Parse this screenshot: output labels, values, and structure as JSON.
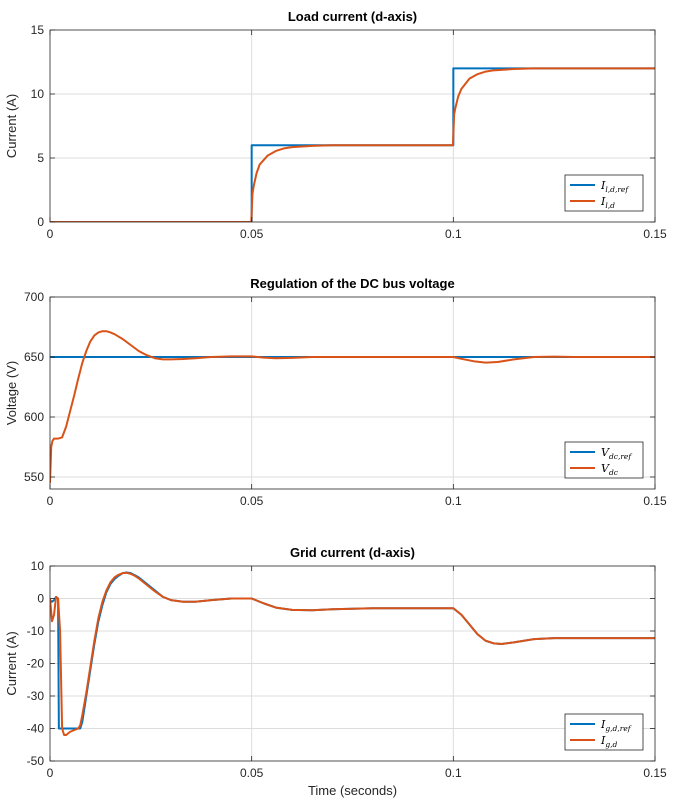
{
  "colors": {
    "reference": "#0072BD",
    "measured": "#D95319",
    "grid": "#dddddd",
    "axis": "#262626"
  },
  "chart_data": [
    {
      "type": "line",
      "title": "Load current (d-axis)",
      "xlabel": "",
      "ylabel": "Current (A)",
      "xlim": [
        0,
        0.15
      ],
      "ylim": [
        0,
        15
      ],
      "xticks": [
        0,
        0.05,
        0.1,
        0.15
      ],
      "xtick_labels": [
        "0",
        "0.05",
        "0.1",
        "0.15"
      ],
      "yticks": [
        0,
        5,
        10,
        15
      ],
      "ytick_labels": [
        "0",
        "5",
        "10",
        "15"
      ],
      "grid": true,
      "legend_position": "bottom-right",
      "series": [
        {
          "name": "I_{l,d,ref}",
          "label_main": "I",
          "label_sub": "l,d,ref",
          "color": "#0072BD",
          "x": [
            0,
            0.05,
            0.05,
            0.1,
            0.1,
            0.15
          ],
          "y": [
            0,
            0,
            6,
            6,
            12,
            12
          ]
        },
        {
          "name": "I_{l,d}",
          "label_main": "I",
          "label_sub": "l,d",
          "color": "#D95319",
          "x": [
            0,
            0.0499,
            0.0502,
            0.0505,
            0.0512,
            0.052,
            0.054,
            0.056,
            0.058,
            0.06,
            0.065,
            0.07,
            0.08,
            0.09,
            0.0999,
            0.1002,
            0.1005,
            0.1012,
            0.102,
            0.104,
            0.106,
            0.108,
            0.11,
            0.115,
            0.12,
            0.13,
            0.14,
            0.15
          ],
          "y": [
            0,
            0,
            2.2,
            2.8,
            3.8,
            4.5,
            5.2,
            5.55,
            5.75,
            5.85,
            5.95,
            6.0,
            6.0,
            6.0,
            6.0,
            8.4,
            8.9,
            9.8,
            10.4,
            11.2,
            11.55,
            11.75,
            11.85,
            11.95,
            12.0,
            12.0,
            12.0,
            12.0
          ]
        }
      ]
    },
    {
      "type": "line",
      "title": "Regulation of the DC bus voltage",
      "xlabel": "",
      "ylabel": "Voltage (V)",
      "xlim": [
        0,
        0.15
      ],
      "ylim": [
        540,
        700
      ],
      "xticks": [
        0,
        0.05,
        0.1,
        0.15
      ],
      "xtick_labels": [
        "0",
        "0.05",
        "0.1",
        "0.15"
      ],
      "yticks": [
        550,
        600,
        650,
        700
      ],
      "ytick_labels": [
        "550",
        "600",
        "650",
        "700"
      ],
      "grid": true,
      "legend_position": "bottom-right",
      "series": [
        {
          "name": "V_{dc,ref}",
          "label_main": "V",
          "label_sub": "dc,ref",
          "color": "#0072BD",
          "x": [
            0,
            0.15
          ],
          "y": [
            650,
            650
          ]
        },
        {
          "name": "V_{dc}",
          "label_main": "V",
          "label_sub": "dc",
          "color": "#D95319",
          "x": [
            0,
            0.0003,
            0.0006,
            0.001,
            0.002,
            0.003,
            0.004,
            0.005,
            0.006,
            0.007,
            0.008,
            0.009,
            0.01,
            0.011,
            0.012,
            0.013,
            0.014,
            0.015,
            0.016,
            0.018,
            0.02,
            0.022,
            0.024,
            0.026,
            0.028,
            0.03,
            0.033,
            0.036,
            0.04,
            0.045,
            0.05,
            0.053,
            0.056,
            0.06,
            0.065,
            0.07,
            0.08,
            0.09,
            0.1,
            0.102,
            0.105,
            0.108,
            0.111,
            0.115,
            0.12,
            0.125,
            0.13,
            0.14,
            0.15
          ],
          "y": [
            545,
            575,
            580,
            582,
            582,
            583,
            592,
            605,
            618,
            632,
            645,
            655,
            663,
            668,
            670.5,
            671.5,
            671.5,
            670.5,
            669,
            665,
            660,
            655,
            651.5,
            649,
            648,
            648,
            648.3,
            649,
            650,
            650.5,
            650.5,
            649.5,
            649,
            649.3,
            650,
            650,
            650,
            650,
            650,
            648.5,
            646.5,
            645.3,
            645.8,
            648,
            650,
            650.3,
            650,
            650,
            650
          ]
        }
      ]
    },
    {
      "type": "line",
      "title": "Grid current (d-axis)",
      "xlabel": "Time (seconds)",
      "ylabel": "Current (A)",
      "xlim": [
        0,
        0.15
      ],
      "ylim": [
        -50,
        10
      ],
      "xticks": [
        0,
        0.05,
        0.1,
        0.15
      ],
      "xtick_labels": [
        "0",
        "0.05",
        "0.1",
        "0.15"
      ],
      "yticks": [
        -50,
        -40,
        -30,
        -20,
        -10,
        0,
        10
      ],
      "ytick_labels": [
        "-50",
        "-40",
        "-30",
        "-20",
        "-10",
        "0",
        "10"
      ],
      "grid": true,
      "legend_position": "bottom-right",
      "series": [
        {
          "name": "I_{g,d,ref}",
          "label_main": "I",
          "label_sub": "g,d,ref",
          "color": "#0072BD",
          "x": [
            0,
            0.0005,
            0.001,
            0.0015,
            0.002,
            0.0022,
            0.0025,
            0.003,
            0.004,
            0.005,
            0.006,
            0.007,
            0.0075,
            0.008,
            0.009,
            0.01,
            0.011,
            0.012,
            0.013,
            0.014,
            0.015,
            0.016,
            0.017,
            0.018,
            0.019,
            0.02,
            0.021,
            0.022,
            0.024,
            0.026,
            0.028,
            0.03,
            0.033,
            0.036,
            0.04,
            0.045,
            0.05,
            0.053,
            0.056,
            0.06,
            0.065,
            0.07,
            0.08,
            0.09,
            0.1,
            0.102,
            0.104,
            0.106,
            0.108,
            0.11,
            0.112,
            0.115,
            0.12,
            0.125,
            0.13,
            0.14,
            0.15
          ],
          "y": [
            -0.5,
            -1,
            -0.5,
            0.5,
            0,
            -40,
            -40,
            -40,
            -40,
            -40,
            -40,
            -40,
            -40,
            -38,
            -30,
            -22,
            -14,
            -7,
            -2,
            2,
            4.5,
            6,
            7,
            7.8,
            8,
            7.8,
            7.2,
            6.5,
            4.5,
            2.5,
            0.5,
            -0.5,
            -1,
            -1,
            -0.5,
            0,
            0,
            -1.5,
            -2.8,
            -3.5,
            -3.6,
            -3.3,
            -3,
            -3,
            -3,
            -5,
            -8,
            -11,
            -13,
            -13.8,
            -14,
            -13.5,
            -12.5,
            -12.2,
            -12.2,
            -12.2,
            -12.2
          ]
        },
        {
          "name": "I_{g,d}",
          "label_main": "I",
          "label_sub": "g,d",
          "color": "#D95319",
          "x": [
            0,
            0.0005,
            0.001,
            0.0015,
            0.002,
            0.0025,
            0.003,
            0.0035,
            0.004,
            0.005,
            0.006,
            0.007,
            0.0075,
            0.008,
            0.009,
            0.01,
            0.011,
            0.012,
            0.013,
            0.014,
            0.015,
            0.016,
            0.017,
            0.018,
            0.019,
            0.02,
            0.021,
            0.022,
            0.024,
            0.026,
            0.028,
            0.03,
            0.033,
            0.036,
            0.04,
            0.045,
            0.05,
            0.053,
            0.056,
            0.06,
            0.065,
            0.07,
            0.08,
            0.09,
            0.1,
            0.102,
            0.104,
            0.106,
            0.108,
            0.11,
            0.112,
            0.115,
            0.12,
            0.125,
            0.13,
            0.14,
            0.15
          ],
          "y": [
            0,
            -7,
            -5,
            0.5,
            0,
            -10,
            -40,
            -42,
            -42,
            -41,
            -40.5,
            -40,
            -39,
            -36,
            -29,
            -21,
            -13,
            -6,
            -1,
            2.5,
            5,
            6.5,
            7.3,
            7.8,
            7.9,
            7.6,
            7,
            6.2,
            4.2,
            2.2,
            0.5,
            -0.5,
            -1,
            -1,
            -0.5,
            0,
            0,
            -1.5,
            -2.8,
            -3.5,
            -3.6,
            -3.3,
            -3,
            -3,
            -3,
            -5,
            -8,
            -11,
            -13,
            -13.8,
            -14,
            -13.5,
            -12.5,
            -12.2,
            -12.2,
            -12.2,
            -12.2
          ]
        }
      ]
    }
  ]
}
